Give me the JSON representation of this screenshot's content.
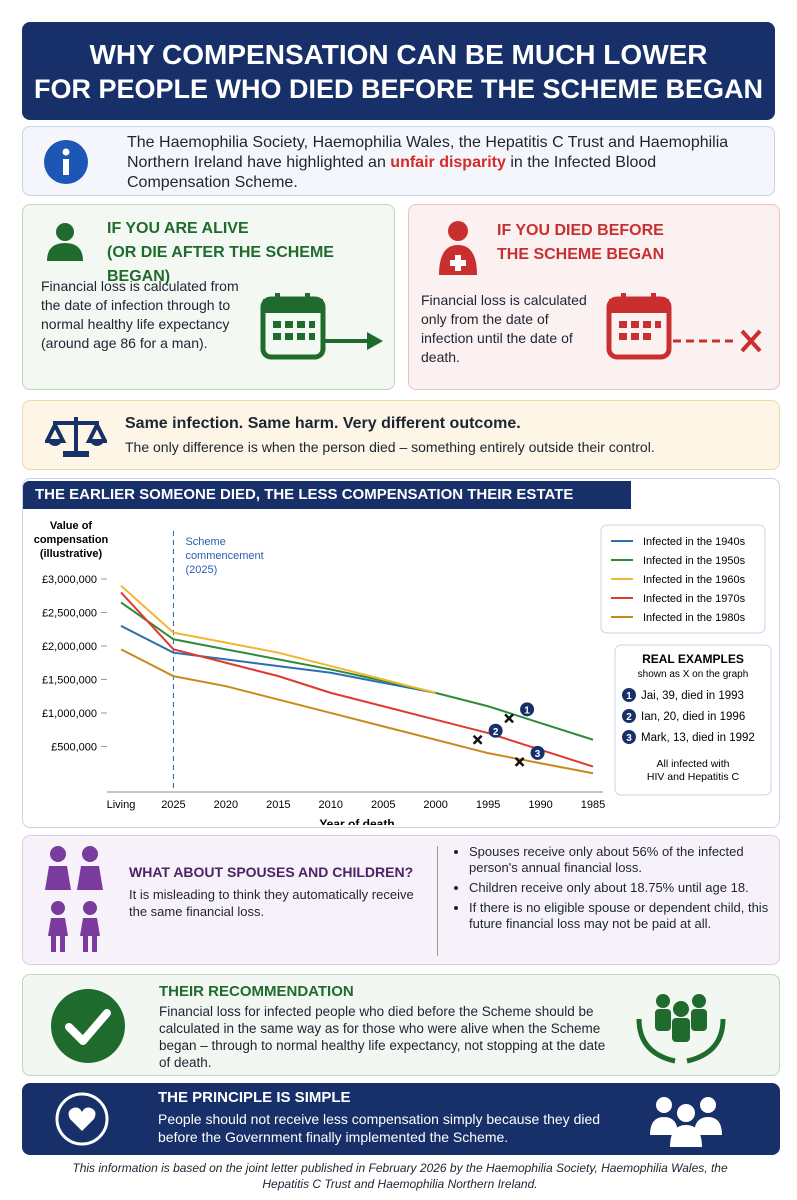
{
  "header": {
    "title_lines": [
      "WHY COMPENSATION CAN BE MUCH LOWER",
      "FOR PEOPLE WHO DIED BEFORE THE SCHEME BEGAN"
    ]
  },
  "intro": {
    "parts": [
      "The Haemophilia Society, Haemophilia Wales, the Hepatitis C Trust and Haemophilia Northern Ireland have highlighted an ",
      "unfair disparity",
      " in the Infected Blood Compensation Scheme."
    ]
  },
  "alive": {
    "title": "IF YOU ARE ALIVE",
    "subtitle": "(OR DIE AFTER THE SCHEME BEGAN)",
    "text": "Financial loss is calculated from the date of infection through to normal healthy life expectancy",
    "note": "(around age 86 for a man)."
  },
  "died": {
    "title_lines": [
      "IF YOU DIED BEFORE",
      "THE SCHEME BEGAN"
    ],
    "text": "Financial loss is calculated only from the date of infection until the date of death."
  },
  "outcome": {
    "headline": "Same infection. Same harm. Very different outcome.",
    "text": "The only difference is when the person died – something entirely outside their control."
  },
  "chart_data": {
    "type": "line",
    "title": "THE EARLIER SOMEONE DIED, THE LESS COMPENSATION THEIR ESTATE RECEIVES",
    "y_label_lines": [
      "Value of",
      "compensation",
      "(illustrative)"
    ],
    "x_label": "Year of death",
    "categories": [
      "Living",
      "2025",
      "2020",
      "2015",
      "2010",
      "2005",
      "2000",
      "1995",
      "1990",
      "1985"
    ],
    "series": [
      {
        "name": "Infected in the 1940s",
        "color": "#2a6fb0",
        "values": [
          2300000,
          1900000,
          1800000,
          1700000,
          1600000,
          1450000,
          1300000,
          null,
          null,
          null
        ]
      },
      {
        "name": "Infected in the 1950s",
        "color": "#2e8b3a",
        "values": [
          2650000,
          2100000,
          1950000,
          1800000,
          1650000,
          1480000,
          1300000,
          1100000,
          850000,
          600000
        ]
      },
      {
        "name": "Infected in the 1960s",
        "color": "#f2b531",
        "values": [
          2900000,
          2200000,
          2050000,
          1900000,
          1700000,
          1500000,
          1300000,
          null,
          null,
          null
        ]
      },
      {
        "name": "Infected in the 1970s",
        "color": "#e03a2f",
        "values": [
          2800000,
          1950000,
          1750000,
          1550000,
          1300000,
          1100000,
          900000,
          700000,
          450000,
          200000
        ]
      },
      {
        "name": "Infected in the 1980s",
        "color": "#c98a1c",
        "values": [
          1950000,
          1550000,
          1400000,
          1200000,
          1000000,
          800000,
          600000,
          400000,
          250000,
          100000
        ]
      }
    ],
    "ylim": [
      -150000,
      3000000
    ],
    "yticks": [
      {
        "value": 500000,
        "label": "£500,000"
      },
      {
        "value": 1000000,
        "label": "£1,000,000"
      },
      {
        "value": 1500000,
        "label": "£1,500,000"
      },
      {
        "value": 2000000,
        "label": "£2,000,000"
      },
      {
        "value": 2500000,
        "label": "£2,500,000"
      },
      {
        "value": 3000000,
        "label": "£3,000,000"
      }
    ],
    "vline": {
      "at": "2025",
      "label_lines": [
        "Scheme",
        "commencement",
        "(2025)"
      ]
    },
    "examples": {
      "title": "REAL EXAMPLES",
      "subtitle": "shown as X on the graph",
      "note_lines": [
        "All infected with",
        "HIV and Hepatitis C"
      ],
      "items": [
        {
          "marker": "1",
          "label": "Jai, 39, died in 1993",
          "x": 1993,
          "value": 920000
        },
        {
          "marker": "2",
          "label": "Ian, 20, died in 1996",
          "x": 1996,
          "value": 600000
        },
        {
          "marker": "3",
          "label": "Mark, 13, died in 1992",
          "x": 1992,
          "value": 270000
        }
      ]
    }
  },
  "spouses": {
    "title": "WHAT ABOUT SPOUSES AND CHILDREN?",
    "text": "It is misleading to think they automatically receive the same financial loss.",
    "bullets": [
      "Spouses receive only about 56% of the infected person's annual financial loss.",
      "Children receive only about 18.75% until age 18.",
      "If there is no eligible spouse or dependent child, this future financial loss may not be paid at all."
    ]
  },
  "recommendation": {
    "title": "THEIR RECOMMENDATION",
    "text": "Financial loss for infected people who died before the Scheme should be calculated in the same way as for those who were alive when the Scheme began – through to normal healthy life expectancy, not stopping at the date of death."
  },
  "principle": {
    "title": "THE PRINCIPLE IS SIMPLE",
    "text": "People should not receive less compensation simply because they died before the Government finally implemented the Scheme."
  },
  "footer": {
    "text": "This information is based on the joint letter published in February 2026 by the Haemophilia Society, Haemophilia Wales, the Hepatitis C Trust and Haemophilia Northern Ireland."
  }
}
